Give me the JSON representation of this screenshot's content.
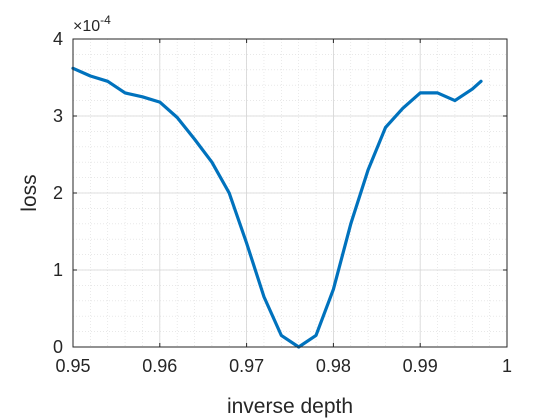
{
  "chart_data": {
    "type": "line",
    "title": "",
    "xlabel": "inverse depth",
    "ylabel": "loss",
    "xlim": [
      0.95,
      1.0
    ],
    "ylim": [
      0,
      4
    ],
    "y_exponent_base": "×10",
    "y_exponent_power": "-4",
    "xticks": [
      0.95,
      0.96,
      0.97,
      0.98,
      0.99,
      1.0
    ],
    "xtick_labels": [
      "0.95",
      "0.96",
      "0.97",
      "0.98",
      "0.99",
      "1"
    ],
    "yticks": [
      0,
      1,
      2,
      3,
      4
    ],
    "ytick_labels": [
      "0",
      "1",
      "2",
      "3",
      "4"
    ],
    "grid": true,
    "minor_grid": true,
    "line_color": "#0072BD",
    "series": [
      {
        "x": [
          0.95,
          0.952,
          0.954,
          0.956,
          0.958,
          0.96,
          0.962,
          0.964,
          0.966,
          0.968,
          0.97,
          0.972,
          0.974,
          0.976,
          0.978,
          0.98,
          0.982,
          0.984,
          0.986,
          0.988,
          0.99,
          0.992,
          0.994,
          0.996,
          0.997
        ],
        "y": [
          3.62,
          3.52,
          3.45,
          3.3,
          3.25,
          3.18,
          2.98,
          2.7,
          2.4,
          2.0,
          1.35,
          0.65,
          0.15,
          0.0,
          0.15,
          0.75,
          1.6,
          2.3,
          2.85,
          3.1,
          3.3,
          3.3,
          3.2,
          3.35,
          3.45
        ]
      }
    ]
  }
}
